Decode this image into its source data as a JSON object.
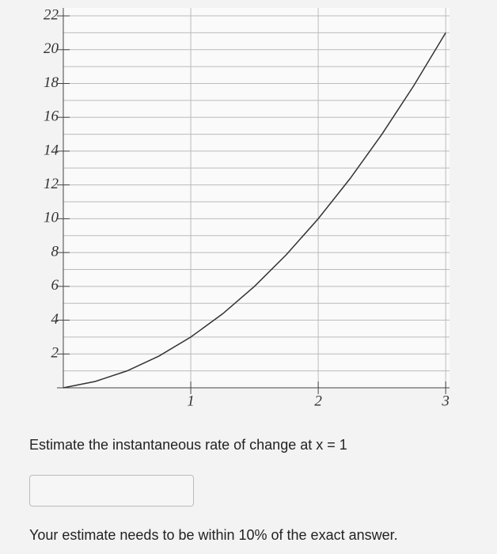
{
  "chart_data": {
    "type": "line",
    "x": [
      0,
      0.25,
      0.5,
      0.75,
      1,
      1.25,
      1.5,
      1.75,
      2,
      2.25,
      2.5,
      2.75,
      3
    ],
    "values": [
      0,
      0.375,
      1,
      1.875,
      3,
      4.375,
      6,
      7.875,
      10,
      12.375,
      15,
      17.875,
      21
    ],
    "color": "#333333",
    "xlim": [
      0,
      3.03
    ],
    "xticks": [
      1,
      2,
      3
    ],
    "ylim": [
      0,
      22.47
    ],
    "yticks": [
      2,
      4,
      6,
      8,
      10,
      12,
      14,
      16,
      18,
      20,
      22
    ],
    "yminorticks": [
      1,
      3,
      5,
      7,
      9,
      11,
      13,
      15,
      17,
      19,
      21
    ],
    "grid": true
  },
  "question": "Estimate the instantaneous rate of change at x = 1",
  "note": "Your estimate needs to be within 10% of the exact answer."
}
